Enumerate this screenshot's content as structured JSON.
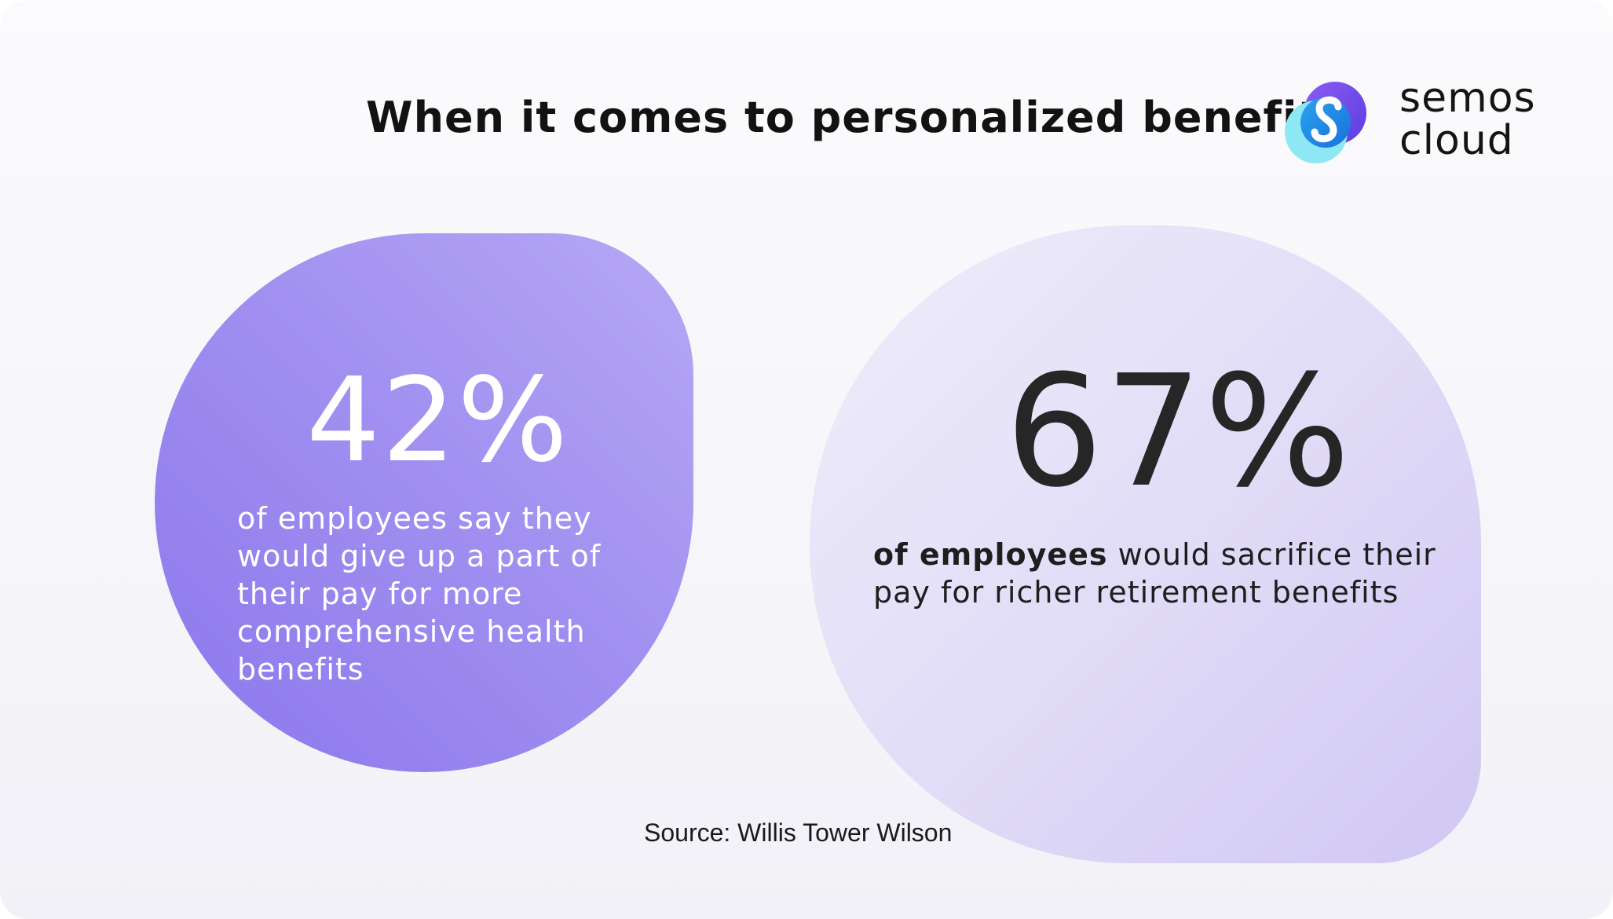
{
  "headline": "When it comes to personalized benefits:",
  "logo": {
    "icon": "semos-cloud-logo-icon",
    "line1": "semos",
    "line2": "cloud",
    "colors": [
      "#7b5cf0",
      "#1f8fe8",
      "#6fe3f0"
    ]
  },
  "stats": [
    {
      "value": "42%",
      "description": "of employees say they would give up a part of their pay for more comprehensive health benefits"
    },
    {
      "value": "67%",
      "description_bold": "of employees",
      "description_rest": " would sacrifice their pay for richer retirement benefits"
    }
  ],
  "source": "Source: Willis Tower Wilson",
  "colors": {
    "left_blob": "#9a87ef",
    "right_blob": "#ddd6f6",
    "text_dark": "#1e1e1e"
  }
}
